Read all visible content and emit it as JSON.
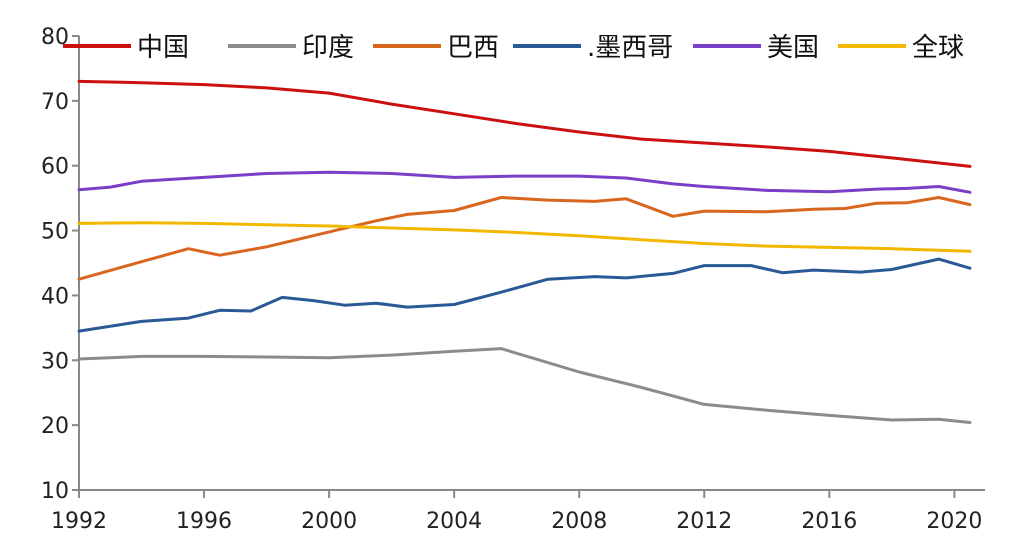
{
  "chart_data": {
    "type": "line",
    "title": "",
    "xlabel": "",
    "ylabel": "",
    "xlim": [
      1992,
      2020.5
    ],
    "ylim": [
      10,
      80
    ],
    "y_ticks": [
      10,
      20,
      30,
      40,
      50,
      60,
      70,
      80
    ],
    "x_ticks": [
      1992,
      1996,
      2000,
      2004,
      2008,
      2012,
      2016,
      2020
    ],
    "grid": false,
    "legend_position": "top",
    "series": [
      {
        "name": "中国",
        "color": "#cc1010",
        "x": [
          1992,
          1994,
          1996,
          1998,
          2000,
          2002,
          2004,
          2006,
          2008,
          2010,
          2012,
          2014,
          2016,
          2018,
          2020.5
        ],
        "y": [
          73,
          72.8,
          72.5,
          72,
          71.2,
          69.5,
          68,
          66.5,
          65.2,
          64.1,
          63.5,
          62.9,
          62.2,
          61.2,
          59.9
        ]
      },
      {
        "name": "印度",
        "color": "#8c8c8c",
        "x": [
          1992,
          1994,
          1996,
          1998,
          2000,
          2002,
          2004,
          2005.5,
          2008,
          2010,
          2012,
          2014,
          2016,
          2018,
          2019.5,
          2020.5
        ],
        "y": [
          30.2,
          30.6,
          30.6,
          30.5,
          30.4,
          30.8,
          31.4,
          31.8,
          28.2,
          25.8,
          23.2,
          22.3,
          21.5,
          20.8,
          20.9,
          20.4
        ]
      },
      {
        "name": "巴西",
        "color": "#d9661f",
        "x": [
          1992,
          1994,
          1995.5,
          1996.5,
          1998,
          2000,
          2001.5,
          2002.5,
          2004,
          2005.5,
          2007,
          2008.5,
          2009.5,
          2011,
          2012,
          2014,
          2015.5,
          2016.5,
          2017.5,
          2018.5,
          2019.5,
          2020.5
        ],
        "y": [
          42.5,
          45.2,
          47.2,
          46.2,
          47.5,
          49.8,
          51.5,
          52.5,
          53.1,
          55.1,
          54.7,
          54.5,
          54.9,
          52.2,
          53,
          52.9,
          53.3,
          53.4,
          54.2,
          54.3,
          55.1,
          54
        ],
        "label": "巴西"
      },
      {
        "name": ".墨西哥",
        "color": "#2a5a96",
        "x": [
          1992,
          1994,
          1995.5,
          1996.5,
          1997.5,
          1998.5,
          1999.5,
          2000.5,
          2001.5,
          2002.5,
          2004,
          2005.5,
          2007,
          2008.5,
          2009.5,
          2011,
          2012,
          2013.5,
          2014.5,
          2015.5,
          2017,
          2018,
          2019.5,
          2020.5
        ],
        "y": [
          34.5,
          36,
          36.5,
          37.7,
          37.6,
          39.7,
          39.2,
          38.5,
          38.8,
          38.2,
          38.6,
          40.5,
          42.5,
          42.9,
          42.7,
          43.4,
          44.6,
          44.6,
          43.5,
          43.9,
          43.6,
          44,
          45.6,
          44.2
        ]
      },
      {
        "name": "美国",
        "color": "#7a3ec8",
        "x": [
          1992,
          1993,
          1994,
          1995,
          1996,
          1998,
          2000,
          2002,
          2004,
          2006,
          2008,
          2009.5,
          2011,
          2012,
          2014,
          2016,
          2017.5,
          2018.5,
          2019.5,
          2020.5
        ],
        "y": [
          56.3,
          56.7,
          57.6,
          57.9,
          58.2,
          58.8,
          59,
          58.8,
          58.2,
          58.4,
          58.4,
          58.1,
          57.2,
          56.8,
          56.2,
          56,
          56.4,
          56.5,
          56.8,
          55.9
        ]
      },
      {
        "name": "全球",
        "color": "#f2b800",
        "x": [
          1992,
          1994,
          1996,
          1998,
          2000,
          2002,
          2004,
          2006,
          2008,
          2010,
          2012,
          2014,
          2016,
          2018,
          2020.5
        ],
        "y": [
          51.1,
          51.2,
          51.1,
          50.9,
          50.7,
          50.4,
          50.1,
          49.7,
          49.2,
          48.6,
          48,
          47.6,
          47.4,
          47.2,
          46.8
        ]
      }
    ]
  }
}
